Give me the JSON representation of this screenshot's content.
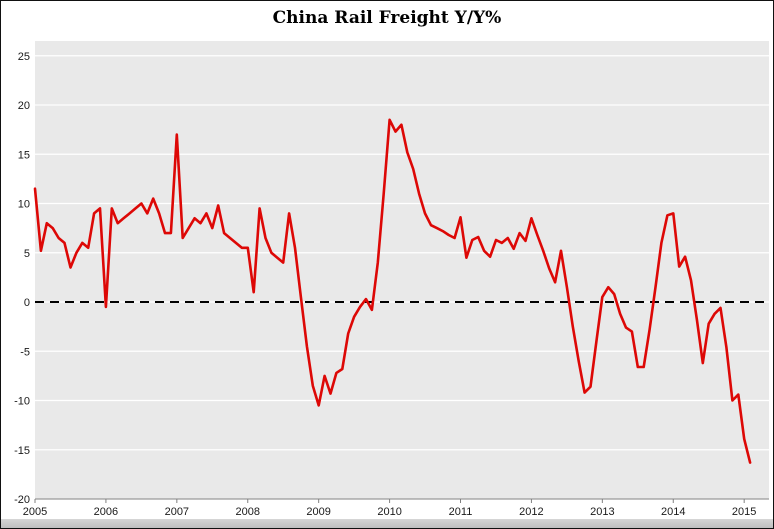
{
  "figure": {
    "title": "China Rail Freight Y/Y%"
  },
  "chart_data": {
    "type": "line",
    "title": "China Rail Freight Y/Y%",
    "xlabel": "",
    "ylabel": "",
    "x_unit": "month",
    "x_start": "2005-01",
    "xlim_years": [
      2005,
      2015.35
    ],
    "ylim": [
      -20,
      26.5
    ],
    "yticks": [
      25,
      20,
      15,
      10,
      5,
      0,
      -5,
      -10,
      -15,
      -20
    ],
    "xtick_labels": [
      "2005",
      "2006",
      "2007",
      "2008",
      "2009",
      "2010",
      "2011",
      "2012",
      "2013",
      "2014",
      "2015"
    ],
    "grid": "horizontal",
    "legend": "none",
    "zero_line": {
      "style": "dashed",
      "color": "#000000",
      "width": 2
    },
    "colors": {
      "plot_bg": "#e9e9e9",
      "grid": "#ffffff",
      "axis": "#808080",
      "text": "#1a1a1a"
    },
    "series": [
      {
        "name": "China Rail Freight Y/Y%",
        "color": "#dd0806",
        "values": [
          11.5,
          5.2,
          8.0,
          7.5,
          6.5,
          6.0,
          3.5,
          5.0,
          6.0,
          5.5,
          9.0,
          9.5,
          -0.5,
          9.5,
          8.0,
          8.5,
          9.0,
          9.5,
          10.0,
          9.0,
          10.5,
          9.0,
          7.0,
          7.0,
          17.0,
          6.5,
          7.5,
          8.5,
          8.0,
          9.0,
          7.5,
          9.8,
          7.0,
          6.5,
          6.0,
          5.5,
          5.5,
          1.0,
          9.5,
          6.5,
          5.0,
          4.5,
          4.0,
          9.0,
          5.5,
          0.5,
          -4.5,
          -8.5,
          -10.5,
          -7.5,
          -9.3,
          -7.2,
          -6.8,
          -3.2,
          -1.5,
          -0.5,
          0.3,
          -0.8,
          4.0,
          11.0,
          18.5,
          17.3,
          18.0,
          15.2,
          13.5,
          11.0,
          9.0,
          7.8,
          7.5,
          7.2,
          6.8,
          6.5,
          8.6,
          4.5,
          6.3,
          6.6,
          5.2,
          4.6,
          6.3,
          6.0,
          6.5,
          5.4,
          7.0,
          6.2,
          8.5,
          6.8,
          5.2,
          3.4,
          2.0,
          5.2,
          1.5,
          -2.5,
          -6.0,
          -9.2,
          -8.6,
          -4.0,
          0.5,
          1.5,
          0.8,
          -1.2,
          -2.6,
          -3.0,
          -6.6,
          -6.6,
          -2.8,
          1.5,
          6.0,
          8.8,
          9.0,
          3.6,
          4.6,
          2.2,
          -1.8,
          -6.2,
          -2.2,
          -1.2,
          -0.6,
          -4.6,
          -10.0,
          -9.4,
          -13.9,
          -16.3
        ]
      }
    ]
  }
}
